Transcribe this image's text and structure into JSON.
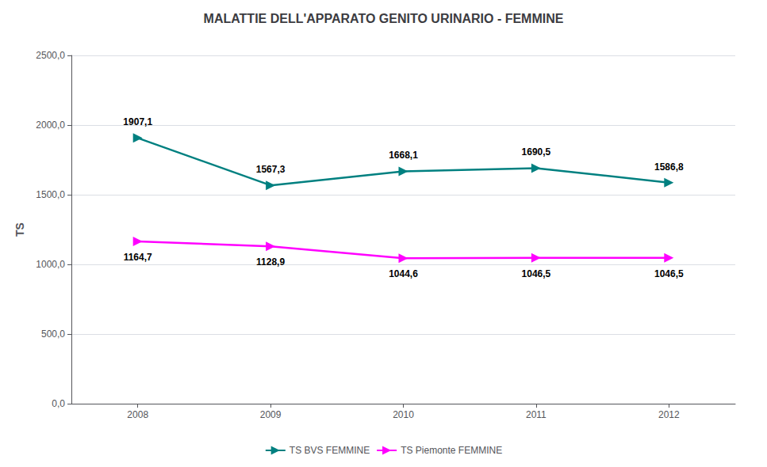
{
  "chart_data": {
    "type": "line",
    "title": "MALATTIE DELL'APPARATO GENITO URINARIO - FEMMINE",
    "x": [
      2008,
      2009,
      2010,
      2011,
      2012
    ],
    "xlim": [
      2007.5,
      2012.5
    ],
    "xticks": [
      2008,
      2009,
      2010,
      2011,
      2012
    ],
    "ylabel": "TS",
    "ylim": [
      0,
      2500
    ],
    "yticks": [
      {
        "value": 0,
        "label": "0,0"
      },
      {
        "value": 500,
        "label": "500,0"
      },
      {
        "value": 1000,
        "label": "1000,0"
      },
      {
        "value": 1500,
        "label": "1500,0"
      },
      {
        "value": 2000,
        "label": "2000,0"
      },
      {
        "value": 2500,
        "label": "2500,0"
      }
    ],
    "grid": true,
    "legend": "bottom",
    "data_labels": true,
    "marker": "triangle-right",
    "series": [
      {
        "name": "TS BVS FEMMINE",
        "color": "#008080",
        "values": [
          1907.1,
          1567.3,
          1668.1,
          1690.5,
          1586.8
        ],
        "value_labels": [
          "1907,1",
          "1567,3",
          "1668,1",
          "1690,5",
          "1586,8"
        ]
      },
      {
        "name": "TS Piemonte FEMMINE",
        "color": "#FF00FF",
        "values": [
          1164.7,
          1128.9,
          1044.6,
          1046.5,
          1046.5
        ],
        "value_labels": [
          "1164,7",
          "1128,9",
          "1044,6",
          "1046,5",
          "1046,5"
        ]
      }
    ]
  }
}
